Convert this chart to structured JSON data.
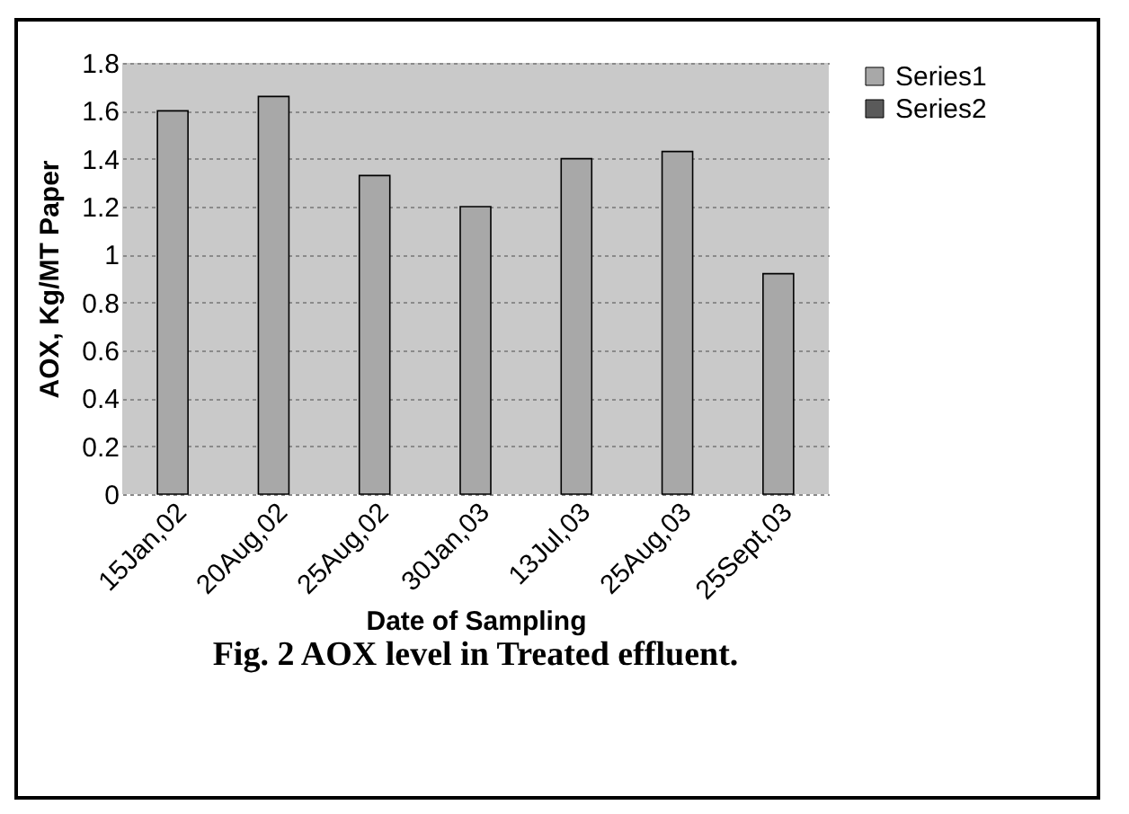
{
  "chart_data": {
    "type": "bar",
    "title": "Fig. 2 AOX level in Treated effluent.",
    "xlabel": "Date of Sampling",
    "ylabel": "AOX, Kg/MT Paper",
    "categories": [
      "15Jan,02",
      "20Aug,02",
      "25Aug,02",
      "30Jan,03",
      "13Jul,03",
      "25Aug,03",
      "25Sept,03"
    ],
    "series": [
      {
        "name": "Series1",
        "color": "#a8a8a8",
        "values": [
          1.6,
          1.66,
          1.33,
          1.2,
          1.4,
          1.43,
          0.92
        ]
      },
      {
        "name": "Series2",
        "color": "#5a5a5a",
        "values": [
          null,
          null,
          null,
          null,
          null,
          null,
          null
        ]
      }
    ],
    "ylim": [
      0,
      1.8
    ],
    "yticks": [
      0,
      0.2,
      0.4,
      0.6,
      0.8,
      1,
      1.2,
      1.4,
      1.6,
      1.8
    ],
    "grid": "y",
    "legend": "right"
  }
}
